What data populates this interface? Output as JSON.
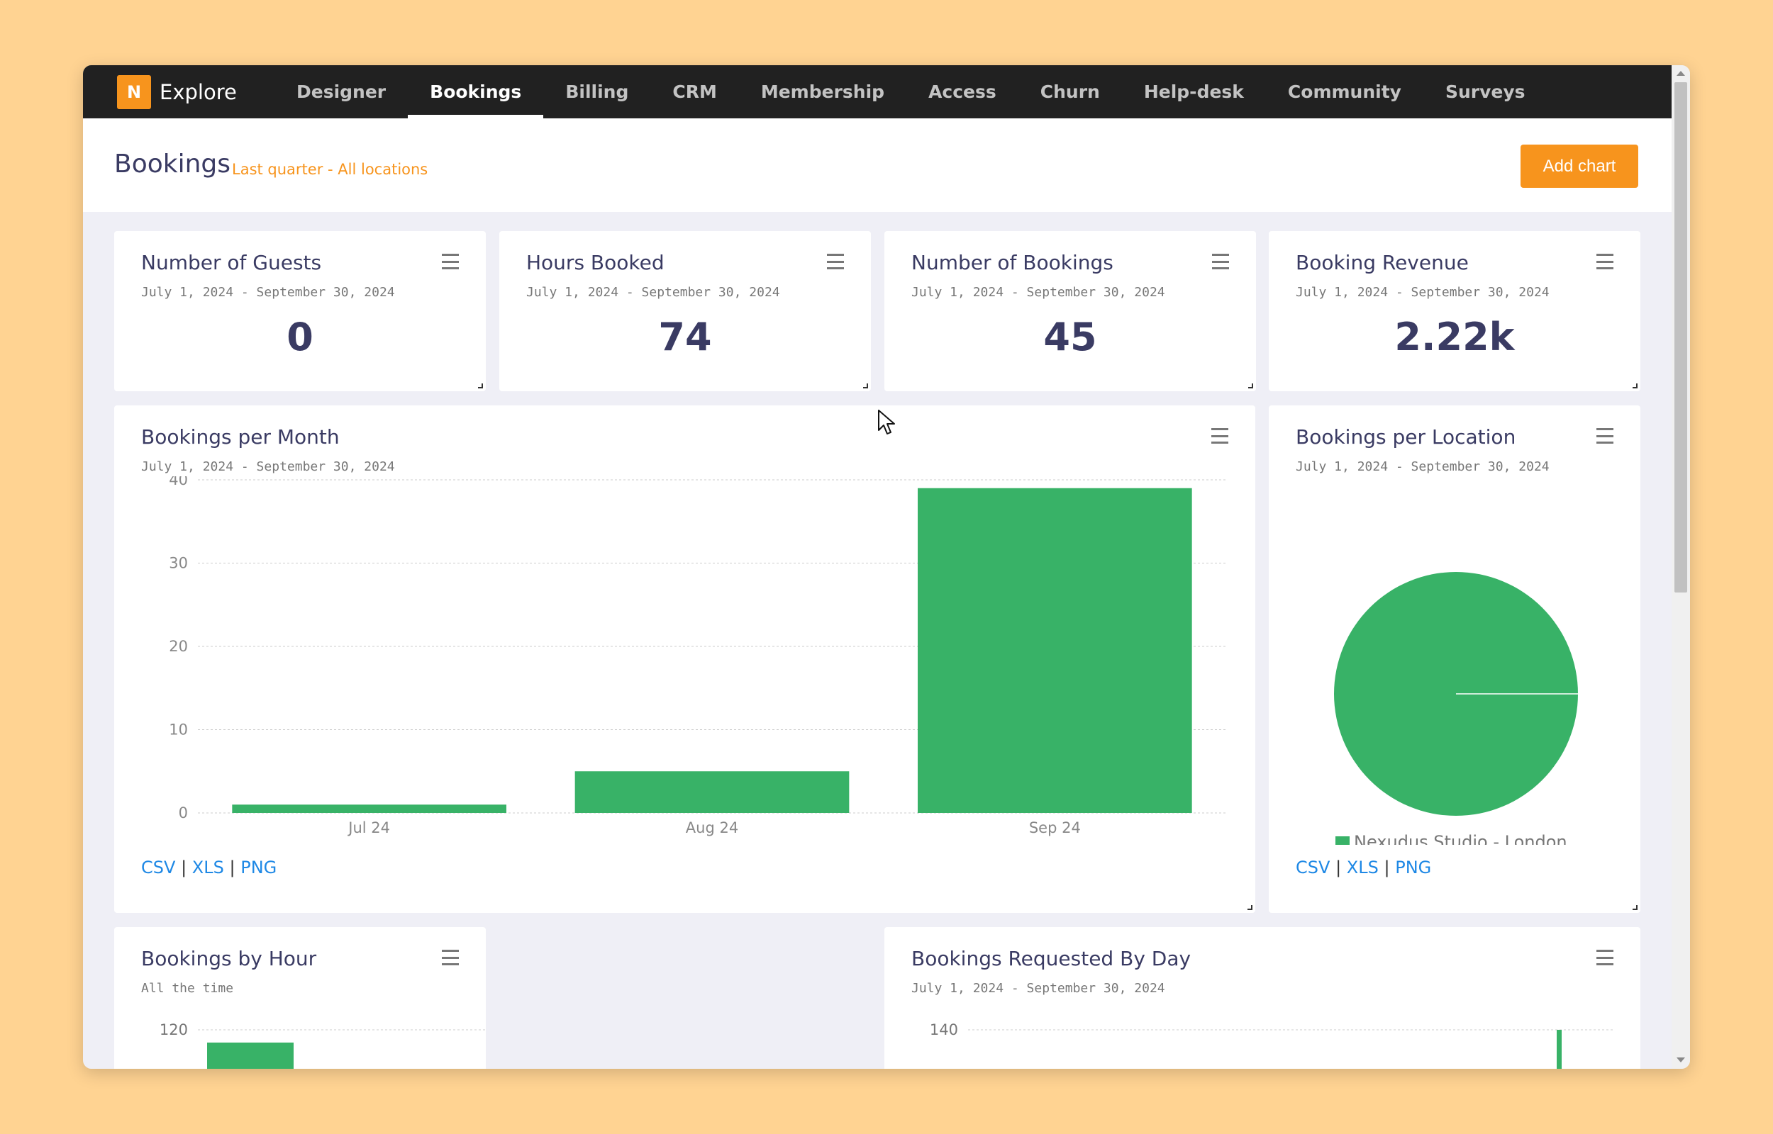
{
  "app": {
    "brand_initial": "N",
    "brand_name": "Explore"
  },
  "nav": {
    "items": [
      "Designer",
      "Bookings",
      "Billing",
      "CRM",
      "Membership",
      "Access",
      "Churn",
      "Help-desk",
      "Community",
      "Surveys"
    ],
    "active": "Bookings"
  },
  "header": {
    "title": "Bookings",
    "subtitle": "Last quarter - All locations",
    "add_button": "Add chart"
  },
  "kpis": [
    {
      "title": "Number of Guests",
      "date": "July 1, 2024 - September 30, 2024",
      "value": "0"
    },
    {
      "title": "Hours Booked",
      "date": "July 1, 2024 - September 30, 2024",
      "value": "74"
    },
    {
      "title": "Number of Bookings",
      "date": "July 1, 2024 - September 30, 2024",
      "value": "45"
    },
    {
      "title": "Booking Revenue",
      "date": "July 1, 2024 - September 30, 2024",
      "value": "2.22k"
    }
  ],
  "exports": {
    "csv": "CSV",
    "xls": "XLS",
    "png": "PNG",
    "sep": "|"
  },
  "charts": {
    "per_month": {
      "title": "Bookings per Month",
      "date": "July 1, 2024 - September 30, 2024"
    },
    "per_location": {
      "title": "Bookings per Location",
      "date": "July 1, 2024 - September 30, 2024"
    },
    "by_hour": {
      "title": "Bookings by Hour",
      "date": "All the time"
    },
    "by_day": {
      "title": "Bookings Requested By Day",
      "date": "July 1, 2024 - September 30, 2024"
    }
  },
  "colors": {
    "accent": "#f7941d",
    "bar": "#38b267",
    "title": "#3a3b63",
    "link": "#1e88e5",
    "nav_bg": "#212121"
  },
  "chart_data": [
    {
      "type": "bar",
      "title": "Bookings per Month",
      "categories": [
        "Jul 24",
        "Aug 24",
        "Sep 24"
      ],
      "values": [
        1,
        5,
        39
      ],
      "ylim": [
        0,
        40
      ],
      "yticks": [
        0,
        10,
        20,
        30,
        40
      ],
      "grid": true
    },
    {
      "type": "pie",
      "title": "Bookings per Location",
      "labels": [
        "Nexudus Studio - London"
      ],
      "values": [
        100
      ],
      "legend": "bottom"
    },
    {
      "type": "bar",
      "title": "Bookings by Hour",
      "yticks": [
        120
      ],
      "partial": true
    },
    {
      "type": "bar",
      "title": "Bookings Requested By Day",
      "yticks": [
        140
      ],
      "partial": true
    }
  ]
}
